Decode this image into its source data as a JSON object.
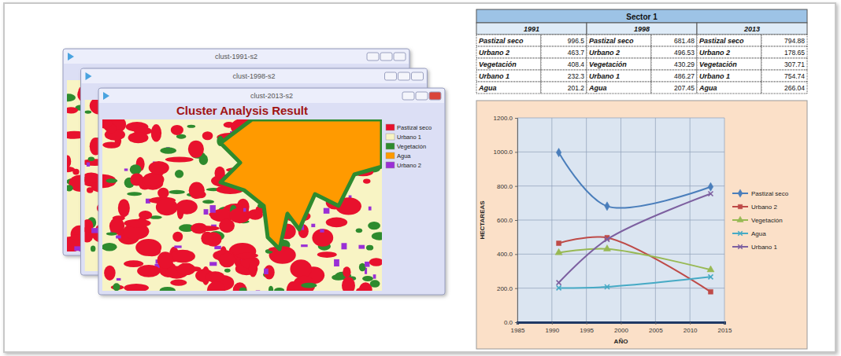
{
  "windows": [
    {
      "title": "clust-1991-s2"
    },
    {
      "title": "clust-1998-s2"
    },
    {
      "title": "clust-2013-s2",
      "plot_title": "Cluster Analysis Result",
      "legend": [
        {
          "name": "Pastizal seco",
          "color": "#e8112d"
        },
        {
          "name": "Urbano 1",
          "color": "#f8f4c4"
        },
        {
          "name": "Vegetación",
          "color": "#2e8b2e"
        },
        {
          "name": "Agua",
          "color": "#ff9a00"
        },
        {
          "name": "Urbano 2",
          "color": "#9a2fd6"
        }
      ]
    }
  ],
  "table": {
    "title": "Sector 1",
    "years": [
      "1991",
      "1998",
      "2013"
    ],
    "rows": [
      [
        "Pastizal seco",
        996.5,
        "Pastizal seco",
        681.48,
        "Pastizal seco",
        794.88
      ],
      [
        "Urbano 2",
        463.7,
        "Urbano 2",
        496.53,
        "Urbano 2",
        178.65
      ],
      [
        "Vegetación",
        408.4,
        "Vegetación",
        430.29,
        "Vegetación",
        307.71
      ],
      [
        "Urbano 1",
        232.3,
        "Urbano 1",
        486.27,
        "Urbano 1",
        754.74
      ],
      [
        "Agua",
        201.2,
        "Agua",
        207.45,
        "Agua",
        266.04
      ]
    ]
  },
  "chart_data": {
    "type": "line",
    "x_label": "AÑO",
    "y_label": "HECTAREAS",
    "x": [
      1991,
      1998,
      2013
    ],
    "xlim": [
      1985,
      2015
    ],
    "xticks": [
      1985,
      1990,
      1995,
      2000,
      2005,
      2010,
      2015
    ],
    "ylim": [
      0,
      1200
    ],
    "yticks": [
      {
        "value": 0,
        "label": "0.0"
      },
      {
        "value": 200,
        "label": "200.0"
      },
      {
        "value": 400,
        "label": "400.0"
      },
      {
        "value": 600,
        "label": "600.0"
      },
      {
        "value": 800,
        "label": "800.0"
      },
      {
        "value": 1000,
        "label": "1000.0"
      },
      {
        "value": 1200,
        "label": "1200.0"
      }
    ],
    "grid": true,
    "legend": "right",
    "line_style": "smooth",
    "series": [
      {
        "name": "Pastizal seco",
        "color": "#4a7ebb",
        "marker": "diamond",
        "values": [
          996.5,
          681.48,
          794.88
        ]
      },
      {
        "name": "Urbano 2",
        "color": "#be4b48",
        "marker": "square",
        "values": [
          463.7,
          496.53,
          178.65
        ]
      },
      {
        "name": "Vegetación",
        "color": "#98b954",
        "marker": "triangle",
        "values": [
          408.4,
          430.29,
          307.71
        ]
      },
      {
        "name": "Agua",
        "color": "#46aac5",
        "marker": "x",
        "values": [
          201.2,
          207.45,
          266.04
        ]
      },
      {
        "name": "Urbano 1",
        "color": "#7d60a0",
        "marker": "x",
        "values": [
          232.3,
          486.27,
          754.74
        ]
      }
    ]
  }
}
